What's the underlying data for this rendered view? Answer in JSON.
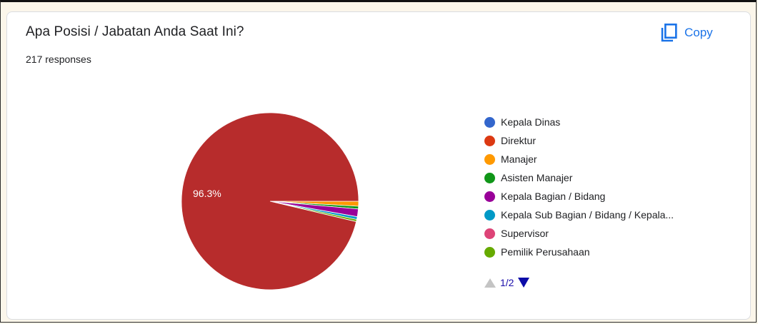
{
  "card": {
    "title": "Apa Posisi / Jabatan Anda Saat Ini?",
    "responses": "217 responses",
    "copy_label": "Copy",
    "copy_icon": "copy-icon"
  },
  "pager": {
    "text": "1/2",
    "prev_icon": "triangle-up-icon",
    "next_icon": "triangle-down-icon"
  },
  "colors": {
    "accent": "#1a73e8",
    "pager_next": "#0c0ca8",
    "pager_prev": "#c4c4c4"
  },
  "chart_data": {
    "type": "pie",
    "title": "",
    "legend_placement": "right",
    "slice_labels": [
      "96.3%"
    ],
    "series": [
      {
        "name": "Kepala Dinas",
        "value": 0,
        "color": "#3366cc"
      },
      {
        "name": "Direktur",
        "value": 96.3,
        "color": "#dc3912"
      },
      {
        "name": "Manajer",
        "value": 0.9,
        "color": "#ff9900"
      },
      {
        "name": "Asisten Manajer",
        "value": 0.5,
        "color": "#109618"
      },
      {
        "name": "Kepala Bagian / Bidang",
        "value": 1.4,
        "color": "#990099"
      },
      {
        "name": "Kepala Sub Bagian / Bidang / Kepala...",
        "value": 0.5,
        "color": "#0099c6"
      },
      {
        "name": "Supervisor",
        "value": 0,
        "color": "#dd4477"
      },
      {
        "name": "Pemilik Perusahaan",
        "value": 0.4,
        "color": "#66aa00"
      }
    ],
    "rendered_slice_colors": {
      "Direktur": "#b72c2c"
    }
  }
}
